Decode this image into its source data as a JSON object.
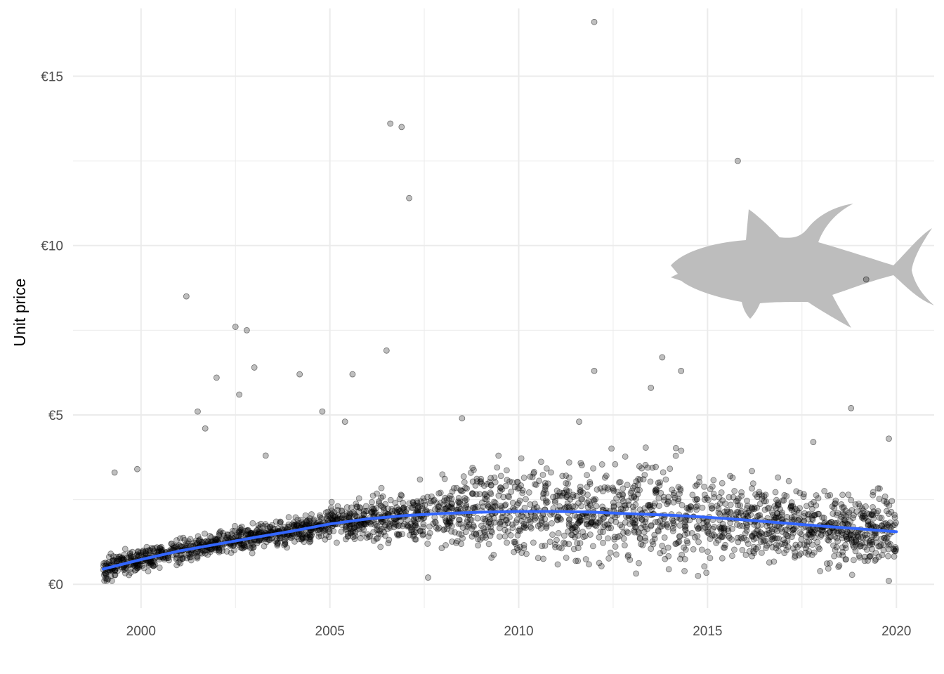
{
  "chart_data": {
    "type": "scatter",
    "title": "",
    "xlabel": "",
    "ylabel": "Unit price",
    "xlim": [
      1998.2,
      2021.0
    ],
    "ylim": [
      -0.7,
      17.0
    ],
    "x_ticks": [
      2000,
      2005,
      2010,
      2015,
      2020
    ],
    "x_tick_labels": [
      "2000",
      "2005",
      "2010",
      "2015",
      "2020"
    ],
    "x_minor_ticks": [
      2002.5,
      2007.5,
      2012.5,
      2017.5
    ],
    "y_ticks": [
      0,
      5,
      10,
      15
    ],
    "y_tick_labels": [
      "€0",
      "€5",
      "€10",
      "€15"
    ],
    "y_minor_ticks": [
      2.5,
      7.5,
      12.5
    ],
    "grid": true,
    "legend": "none",
    "colors": {
      "points": "#000000",
      "trend": "#3366FF",
      "grid": "#ebebeb",
      "icon": "#bdbdbd"
    },
    "icon": "tuna-fish-icon",
    "series": [
      {
        "kind": "points",
        "x": [
          1999.3,
          2001.2,
          2002.0,
          2002.5,
          2002.8,
          2003.0,
          2004.2,
          2004.8,
          2005.6,
          2006.5,
          2006.6,
          2006.9,
          2007.1,
          2012.0,
          2012.0,
          2013.8,
          2014.3,
          2015.8,
          2019.2,
          2018.8,
          2019.8,
          1999.9,
          2001.5,
          2001.7,
          2002.6,
          2003.3,
          2005.4,
          2008.5,
          2011.6,
          2013.5,
          2017.8,
          2019.8,
          2007.6
        ],
        "y": [
          3.3,
          8.5,
          6.1,
          7.6,
          7.5,
          6.4,
          6.2,
          5.1,
          6.2,
          6.9,
          13.6,
          13.5,
          11.4,
          16.6,
          6.3,
          6.7,
          6.3,
          12.5,
          9.0,
          5.2,
          4.3,
          3.4,
          5.1,
          4.6,
          5.6,
          3.8,
          4.8,
          4.9,
          4.8,
          5.8,
          4.2,
          0.1,
          0.2
        ]
      },
      {
        "kind": "smooth",
        "name": "",
        "x": [
          1999.0,
          2000.0,
          2001.0,
          2002.0,
          2003.0,
          2004.0,
          2005.0,
          2006.0,
          2007.0,
          2008.0,
          2009.0,
          2010.0,
          2011.0,
          2012.0,
          2013.0,
          2014.0,
          2015.0,
          2016.0,
          2017.0,
          2018.0,
          2019.0,
          2020.0
        ],
        "y": [
          0.45,
          0.73,
          0.98,
          1.18,
          1.38,
          1.57,
          1.78,
          1.93,
          2.03,
          2.09,
          2.13,
          2.15,
          2.15,
          2.13,
          2.08,
          2.04,
          1.98,
          1.9,
          1.81,
          1.72,
          1.64,
          1.55
        ]
      }
    ]
  }
}
